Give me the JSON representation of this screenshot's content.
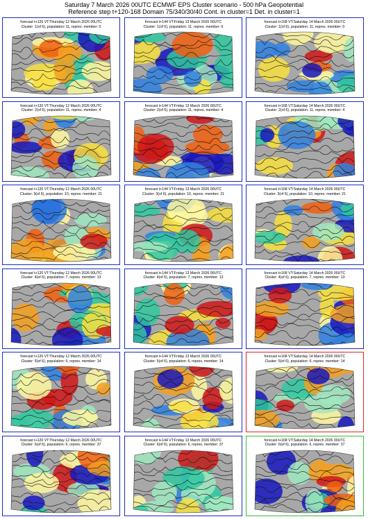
{
  "header": {
    "title": "Saturday 7 March 2026 00UTC ECMWF EPS Cluster scenario - 500 hPa Geopotential",
    "subtitle": "Reference step t+120-168 Domain 75/340/30/40 Cont. in cluster=1 Det. in cluster=1"
  },
  "panels": [
    [
      {
        "line1": "forecast t+120 VT:Thursday 12 March 2026 00UTC",
        "line2": "Cluster: 1(of 6), population: 11, repres. member: 0",
        "frame": "#1a2bc0"
      },
      {
        "line1": "forecast t+144 VT:Friday 13 March 2026 00UTC",
        "line2": "Cluster: 1(of 6), population: 11, repres. member: 0",
        "frame": "#1a2bc0"
      },
      {
        "line1": "forecast t+168 VT:Saturday 14 March 2026 00UTC",
        "line2": "Cluster: 1(of 6), population: 11, repres. member: 0",
        "frame": "#1a2bc0"
      }
    ],
    [
      {
        "line1": "forecast t+120 VT:Thursday 12 March 2026 00UTC",
        "line2": "Cluster: 2(of 6), population: 11, repres. member: 4",
        "frame": "#1a2bc0"
      },
      {
        "line1": "forecast t+144 VT:Friday 13 March 2026 00UTC",
        "line2": "Cluster: 2(of 6), population: 11, repres. member: 4",
        "frame": "#1a2bc0"
      },
      {
        "line1": "forecast t+168 VT:Saturday 14 March 2026 00UTC",
        "line2": "Cluster: 2(of 6), population: 11, repres. member: 4",
        "frame": "#1a2bc0"
      }
    ],
    [
      {
        "line1": "forecast t+120 VT:Thursday 12 March 2026 00UTC",
        "line2": "Cluster: 3(of 6), population: 10, repres. member: 21",
        "frame": "#1a2bc0"
      },
      {
        "line1": "forecast t+144 VT:Friday 13 March 2026 00UTC",
        "line2": "Cluster: 3(of 6), population: 10, repres. member: 21",
        "frame": "#1a2bc0"
      },
      {
        "line1": "forecast t+168 VT:Saturday 14 March 2026 00UTC",
        "line2": "Cluster: 3(of 6), population: 10, repres. member: 21",
        "frame": "#1a2bc0"
      }
    ],
    [
      {
        "line1": "forecast t+120 VT:Thursday 12 March 2026 00UTC",
        "line2": "Cluster: 4(of 6), population: 7, repres. member: 13",
        "frame": "#1a2bc0"
      },
      {
        "line1": "forecast t+144 VT:Friday 13 March 2026 00UTC",
        "line2": "Cluster: 4(of 6), population: 7, repres. member: 13",
        "frame": "#1a2bc0"
      },
      {
        "line1": "forecast t+168 VT:Saturday 14 March 2026 00UTC",
        "line2": "Cluster: 4(of 6), population: 7, repres. member: 13",
        "frame": "#1a2bc0"
      }
    ],
    [
      {
        "line1": "forecast t+120 VT:Thursday 12 March 2026 00UTC",
        "line2": "Cluster: 5(of 6), population: 6, repres. member: 14",
        "frame": "#1a2bc0"
      },
      {
        "line1": "forecast t+144 VT:Friday 13 March 2026 00UTC",
        "line2": "Cluster: 5(of 6), population: 6, repres. member: 14",
        "frame": "#1a2bc0"
      },
      {
        "line1": "forecast t+168 VT:Saturday 14 March 2026 00UTC",
        "line2": "Cluster: 5(of 6), population: 6, repres. member: 14",
        "frame": "#e02020"
      }
    ],
    [
      {
        "line1": "forecast t+120 VT:Thursday 12 March 2026 00UTC",
        "line2": "Cluster: 6(of 6), population: 6, repres. member: 37",
        "frame": "#1a2bc0"
      },
      {
        "line1": "forecast t+144 VT:Friday 13 March 2026 00UTC",
        "line2": "Cluster: 6(of 6), population: 6, repres. member: 37",
        "frame": "#1a2bc0"
      },
      {
        "line1": "forecast t+168 VT:Saturday 14 March 2026 00UTC",
        "line2": "Cluster: 6(of 6), population: 6, repres. member: 37",
        "frame": "#30c030"
      }
    ]
  ]
}
